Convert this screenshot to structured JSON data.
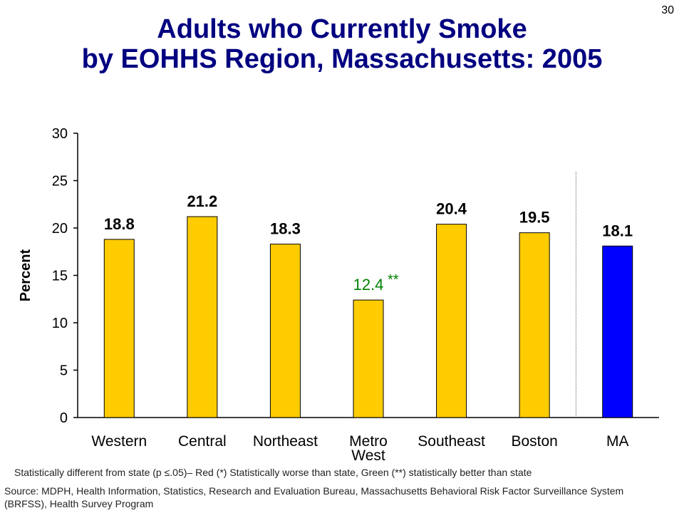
{
  "page_number": "30",
  "title": {
    "line1": "Adults who Currently Smoke",
    "line2": "by EOHHS Region, Massachusetts: 2005"
  },
  "chart_data": {
    "type": "bar",
    "ylabel": "Percent",
    "ylim": [
      0,
      30
    ],
    "yticks": [
      "0",
      "5",
      "10",
      "15",
      "20",
      "25",
      "30"
    ],
    "categories": [
      {
        "label": [
          "Western"
        ],
        "value": 18.8,
        "value_label": "18.8",
        "marker": "",
        "color": "#ffcc00",
        "label_color": "#000000"
      },
      {
        "label": [
          "Central"
        ],
        "value": 21.2,
        "value_label": "21.2",
        "marker": "",
        "color": "#ffcc00",
        "label_color": "#000000"
      },
      {
        "label": [
          "Northeast"
        ],
        "value": 18.3,
        "value_label": "18.3",
        "marker": "",
        "color": "#ffcc00",
        "label_color": "#000000"
      },
      {
        "label": [
          "Metro",
          "West"
        ],
        "value": 12.4,
        "value_label": "12.4",
        "marker": "**",
        "color": "#ffcc00",
        "label_color": "#008000"
      },
      {
        "label": [
          "Southeast"
        ],
        "value": 20.4,
        "value_label": "20.4",
        "marker": "",
        "color": "#ffcc00",
        "label_color": "#000000"
      },
      {
        "label": [
          "Boston"
        ],
        "value": 19.5,
        "value_label": "19.5",
        "marker": "",
        "color": "#ffcc00",
        "label_color": "#000000"
      },
      {
        "label": [
          "MA"
        ],
        "value": 18.1,
        "value_label": "18.1",
        "marker": "",
        "color": "#0000ff",
        "label_color": "#000000"
      }
    ],
    "separator_before_index": 6,
    "grid": false
  },
  "footnote": "Statistically different from state (p ≤.05)– Red (*) Statistically worse than state, Green (**) statistically better than state",
  "source": "Source: MDPH, Health Information, Statistics, Research and Evaluation Bureau, Massachusetts Behavioral Risk Factor Surveillance System (BRFSS), Health Survey Program"
}
